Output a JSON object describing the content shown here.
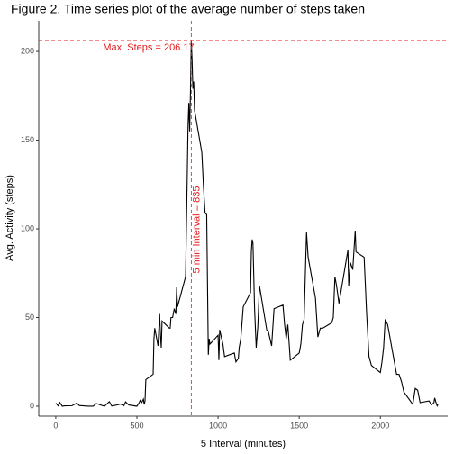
{
  "chart_data": {
    "type": "line",
    "title": "Figure 2. Time series plot of the average number of steps taken",
    "x_label": "5  Interval (minutes)",
    "y_label": "Avg. Activity (steps)",
    "annotations": [
      "Max. Steps = 206.17",
      "5 min Interval = 835"
    ],
    "hline": 206.17,
    "vline": 835,
    "reference_color": "#e41a1c",
    "x": [
      0,
      15,
      25,
      40,
      55,
      100,
      130,
      145,
      200,
      230,
      250,
      300,
      330,
      345,
      400,
      420,
      430,
      450,
      500,
      515,
      520,
      530,
      540,
      545,
      550,
      555,
      600,
      605,
      610,
      630,
      640,
      645,
      650,
      655,
      700,
      705,
      710,
      720,
      730,
      740,
      745,
      750,
      800,
      810,
      815,
      820,
      825,
      830,
      835,
      840,
      845,
      850,
      855,
      900,
      910,
      920,
      930,
      940,
      945,
      950,
      1000,
      1005,
      1010,
      1020,
      1030,
      1040,
      1100,
      1110,
      1125,
      1130,
      1140,
      1155,
      1200,
      1205,
      1210,
      1215,
      1225,
      1235,
      1245,
      1255,
      1300,
      1310,
      1330,
      1345,
      1400,
      1410,
      1420,
      1430,
      1445,
      1500,
      1510,
      1520,
      1530,
      1545,
      1555,
      1600,
      1615,
      1630,
      1645,
      1700,
      1710,
      1720,
      1730,
      1745,
      1800,
      1805,
      1815,
      1830,
      1845,
      1850,
      1900,
      1915,
      1930,
      1945,
      2000,
      2010,
      2020,
      2030,
      2045,
      2100,
      2115,
      2130,
      2145,
      2200,
      2215,
      2230,
      2245,
      2300,
      2315,
      2330,
      2335,
      2340,
      2345,
      2350,
      2355
    ],
    "series": [
      {
        "name": "steps",
        "color": "#000000",
        "values": [
          1.7,
          0.2,
          2.1,
          0,
          0.2,
          0.3,
          1.8,
          0.4,
          0,
          0,
          1.5,
          0,
          2.6,
          0.1,
          1.2,
          0.3,
          2.5,
          0.7,
          0,
          2.2,
          3.3,
          2.1,
          4,
          1,
          3,
          15,
          18,
          38,
          44,
          34,
          52,
          40,
          33,
          48,
          44,
          44,
          50,
          50,
          55,
          52,
          67,
          56,
          73,
          129,
          158,
          171,
          155,
          177,
          206.17,
          195,
          179,
          183,
          167,
          143,
          124,
          109,
          108,
          29,
          38,
          35,
          40,
          26,
          43,
          39,
          35,
          28,
          30,
          25,
          27,
          33,
          38,
          56,
          64,
          87,
          94,
          92,
          55,
          33,
          45,
          68,
          43,
          42,
          34,
          55,
          57,
          46,
          38,
          46,
          26,
          30,
          35,
          46,
          49,
          98,
          84,
          61,
          39,
          44,
          44,
          47,
          50,
          73,
          68,
          58,
          88,
          68,
          81,
          77,
          99,
          87,
          84,
          53,
          28,
          23,
          19,
          25,
          33,
          49,
          46,
          18,
          18,
          14,
          8,
          1,
          10,
          9,
          2,
          3,
          0.8,
          2,
          4.7,
          3,
          1.5,
          0.2,
          1.1
        ]
      }
    ],
    "xlim": [
      -105,
      2415
    ],
    "ylim": [
      -5.6,
      217.3
    ],
    "xticks": [
      0,
      500,
      1000,
      1500,
      2000
    ],
    "yticks": [
      0,
      50,
      100,
      150,
      200
    ],
    "grid": false
  }
}
